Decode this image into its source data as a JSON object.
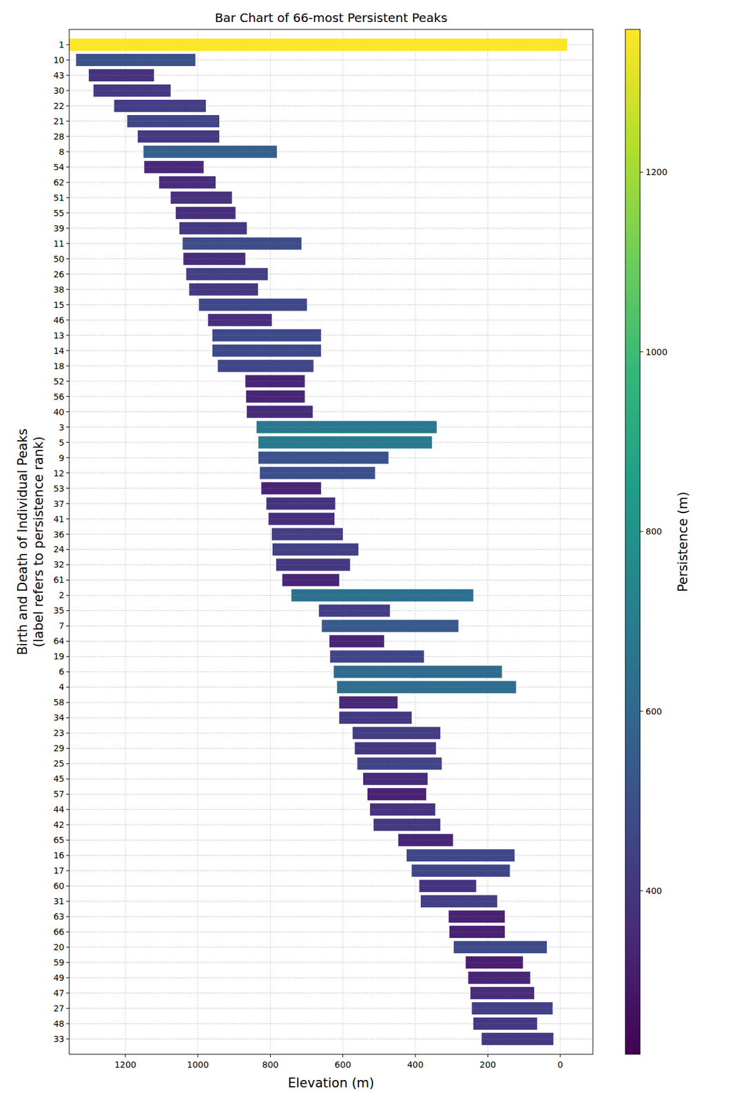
{
  "chart_data": {
    "type": "bar",
    "orientation": "horizontal",
    "title": "Bar Chart of 66-most Persistent Peaks",
    "x_label": "Elevation (m)",
    "y_label": "Birth and Death of Individual Peaks\n(label refers to persistence rank)",
    "categories": [
      "1",
      "10",
      "43",
      "30",
      "22",
      "21",
      "28",
      "8",
      "54",
      "62",
      "51",
      "55",
      "39",
      "11",
      "50",
      "26",
      "38",
      "15",
      "46",
      "13",
      "14",
      "18",
      "52",
      "56",
      "40",
      "3",
      "5",
      "9",
      "12",
      "53",
      "37",
      "41",
      "36",
      "24",
      "32",
      "61",
      "2",
      "35",
      "7",
      "64",
      "19",
      "6",
      "4",
      "58",
      "34",
      "23",
      "29",
      "25",
      "45",
      "57",
      "44",
      "42",
      "65",
      "16",
      "17",
      "60",
      "31",
      "63",
      "66",
      "20",
      "59",
      "49",
      "47",
      "27",
      "48",
      "33"
    ],
    "birth": [
      1355,
      1336,
      1301,
      1288,
      1231,
      1195,
      1166,
      1150,
      1148,
      1107,
      1075,
      1061,
      1051,
      1042,
      1040,
      1032,
      1024,
      997,
      972,
      960,
      960,
      945,
      869,
      867,
      865,
      838,
      833,
      833,
      829,
      825,
      811,
      805,
      796,
      794,
      784,
      767,
      742,
      666,
      658,
      637,
      635,
      625,
      616,
      610,
      610,
      573,
      567,
      560,
      544,
      532,
      525,
      515,
      447,
      424,
      410,
      389,
      385,
      308,
      306,
      294,
      261,
      254,
      248,
      244,
      240,
      217
    ],
    "death": [
      -19,
      1007,
      1121,
      1075,
      978,
      941,
      941,
      782,
      984,
      951,
      906,
      896,
      865,
      714,
      869,
      807,
      834,
      699,
      796,
      660,
      660,
      681,
      705,
      705,
      683,
      341,
      354,
      474,
      511,
      660,
      621,
      623,
      600,
      557,
      580,
      610,
      240,
      470,
      281,
      486,
      376,
      161,
      122,
      449,
      410,
      331,
      343,
      327,
      366,
      370,
      345,
      331,
      296,
      126,
      139,
      232,
      174,
      153,
      153,
      37,
      103,
      83,
      72,
      21,
      64,
      19
    ],
    "colors": [
      "#fde725",
      "#3b528b",
      "#46327e",
      "#443983",
      "#433e85",
      "#414487",
      "#443a83",
      "#355f8d",
      "#482878",
      "#472d7b",
      "#46327e",
      "#46307e",
      "#453882",
      "#3e4c8a",
      "#472e7c",
      "#433e85",
      "#453781",
      "#3f4889",
      "#472f7d",
      "#3e4989",
      "#3e4989",
      "#404688",
      "#482475",
      "#482576",
      "#472c7a",
      "#2a788e",
      "#297a8e",
      "#3b528b",
      "#3c4f8a",
      "#482576",
      "#46337f",
      "#472e7c",
      "#433e85",
      "#424086",
      "#453781",
      "#482677",
      "#2c718e",
      "#433e85",
      "#38598c",
      "#482475",
      "#404588",
      "#2f6b8e",
      "#2e6e8e",
      "#482878",
      "#443983",
      "#433d84",
      "#453882",
      "#414487",
      "#472c7a",
      "#482374",
      "#46327e",
      "#453882",
      "#482576",
      "#3f4788",
      "#404588",
      "#46337f",
      "#433e85",
      "#482374",
      "#482173",
      "#3e4a89",
      "#481f70",
      "#482576",
      "#472d7b",
      "#424086",
      "#453882",
      "#443a83"
    ],
    "xlim": [
      1355,
      -90
    ],
    "xticks": [
      1200,
      1000,
      800,
      600,
      400,
      200,
      0
    ],
    "grid": true,
    "colorbar": {
      "label": "Persistence (m)",
      "range": [
        218,
        1359
      ],
      "ticks": [
        400,
        600,
        800,
        1000,
        1200
      ]
    }
  }
}
